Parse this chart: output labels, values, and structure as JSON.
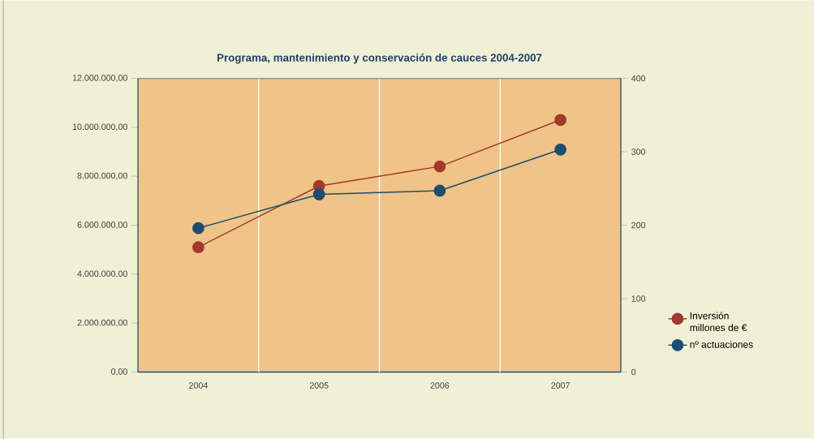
{
  "chart_data": {
    "type": "line",
    "title": "Programa, mantenimiento y conservación de cauces 2004-2007",
    "categories": [
      "2004",
      "2005",
      "2006",
      "2007"
    ],
    "series": [
      {
        "name": "Inversión millones de €",
        "color": "#a23a2c",
        "values": [
          5100000,
          7600000,
          8400000,
          10300000
        ]
      },
      {
        "name": "nº actuaciones",
        "color": "#1d4e6e",
        "values": [
          196,
          242,
          247,
          303
        ],
        "axis": "y2"
      }
    ],
    "ylim": [
      0,
      12000000
    ],
    "yticks": [
      {
        "value": 0,
        "label": "0,00"
      },
      {
        "value": 2000000,
        "label": "2.000.000,00"
      },
      {
        "value": 4000000,
        "label": "4.000.000,00"
      },
      {
        "value": 6000000,
        "label": "6.000.000,00"
      },
      {
        "value": 8000000,
        "label": "8.000.000,00"
      },
      {
        "value": 10000000,
        "label": "10.000.000,00"
      },
      {
        "value": 12000000,
        "label": "12.000.000,00"
      }
    ],
    "y2lim": [
      0,
      400
    ],
    "y2ticks": [
      0,
      100,
      200,
      300,
      400
    ],
    "grid": "x",
    "legend": "right",
    "marker": "circle",
    "line_style": "solid"
  }
}
